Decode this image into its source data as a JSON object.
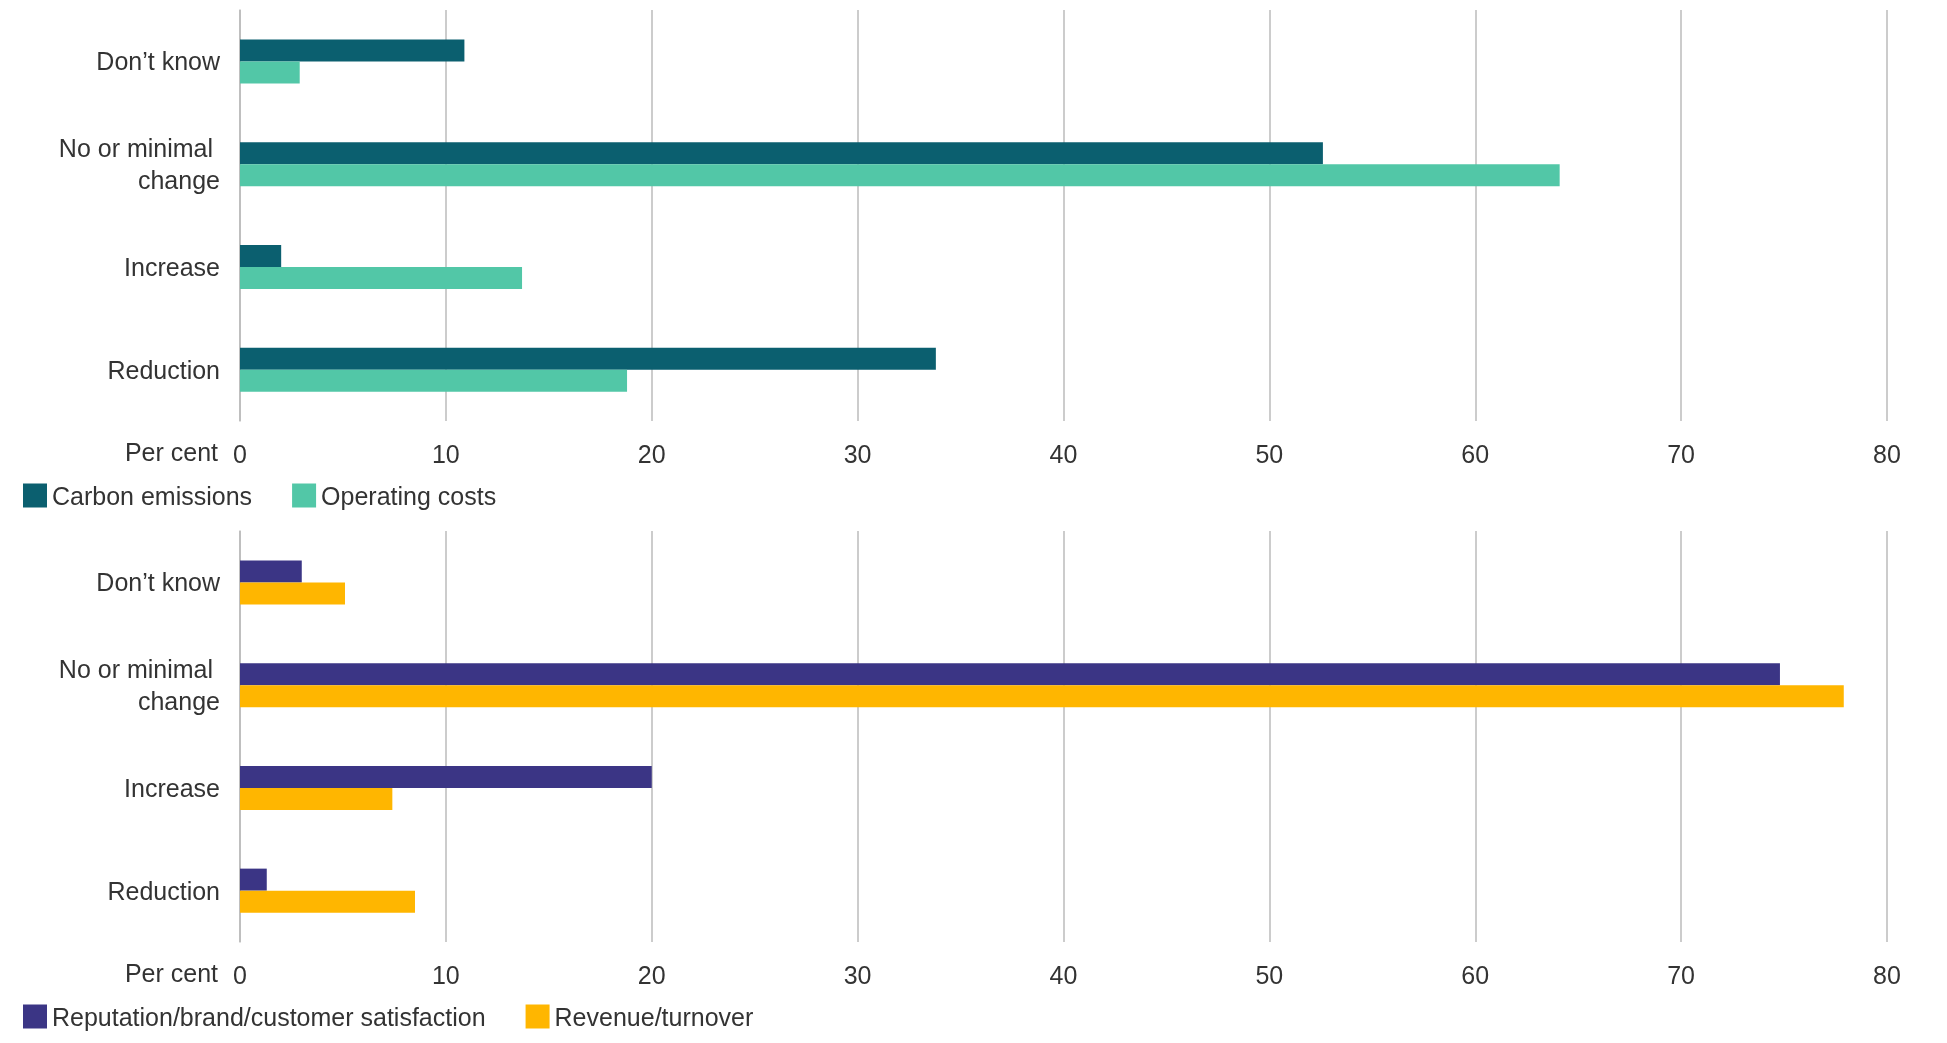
{
  "chart_data": [
    {
      "type": "bar",
      "orientation": "horizontal",
      "categories": [
        "Don’t know",
        "No or minimal change",
        "Increase",
        "Reduction"
      ],
      "xlabel": "Per cent",
      "xlim": [
        0,
        80
      ],
      "xticks": [
        0,
        10,
        20,
        30,
        40,
        50,
        60,
        70,
        80
      ],
      "grid": "x",
      "legend": "bottom left",
      "series": [
        {
          "name": "Carbon emissions",
          "color": "#0b5f6f",
          "values": [
            10.9,
            52.6,
            2.0,
            33.8
          ]
        },
        {
          "name": "Operating costs",
          "color": "#52c7a7",
          "values": [
            2.9,
            64.1,
            13.7,
            18.8
          ]
        }
      ]
    },
    {
      "type": "bar",
      "orientation": "horizontal",
      "categories": [
        "Don’t know",
        "No or minimal change",
        "Increase",
        "Reduction"
      ],
      "xlabel": "Per cent",
      "xlim": [
        0,
        80
      ],
      "xticks": [
        0,
        10,
        20,
        30,
        40,
        50,
        60,
        70,
        80
      ],
      "grid": "x",
      "legend": "bottom left",
      "series": [
        {
          "name": "Reputation/brand/customer satisfaction",
          "color": "#3b3585",
          "values": [
            3.0,
            74.8,
            20.0,
            1.3
          ]
        },
        {
          "name": "Revenue/turnover",
          "color": "#ffb600",
          "values": [
            5.1,
            77.9,
            7.4,
            8.5
          ]
        }
      ]
    }
  ]
}
